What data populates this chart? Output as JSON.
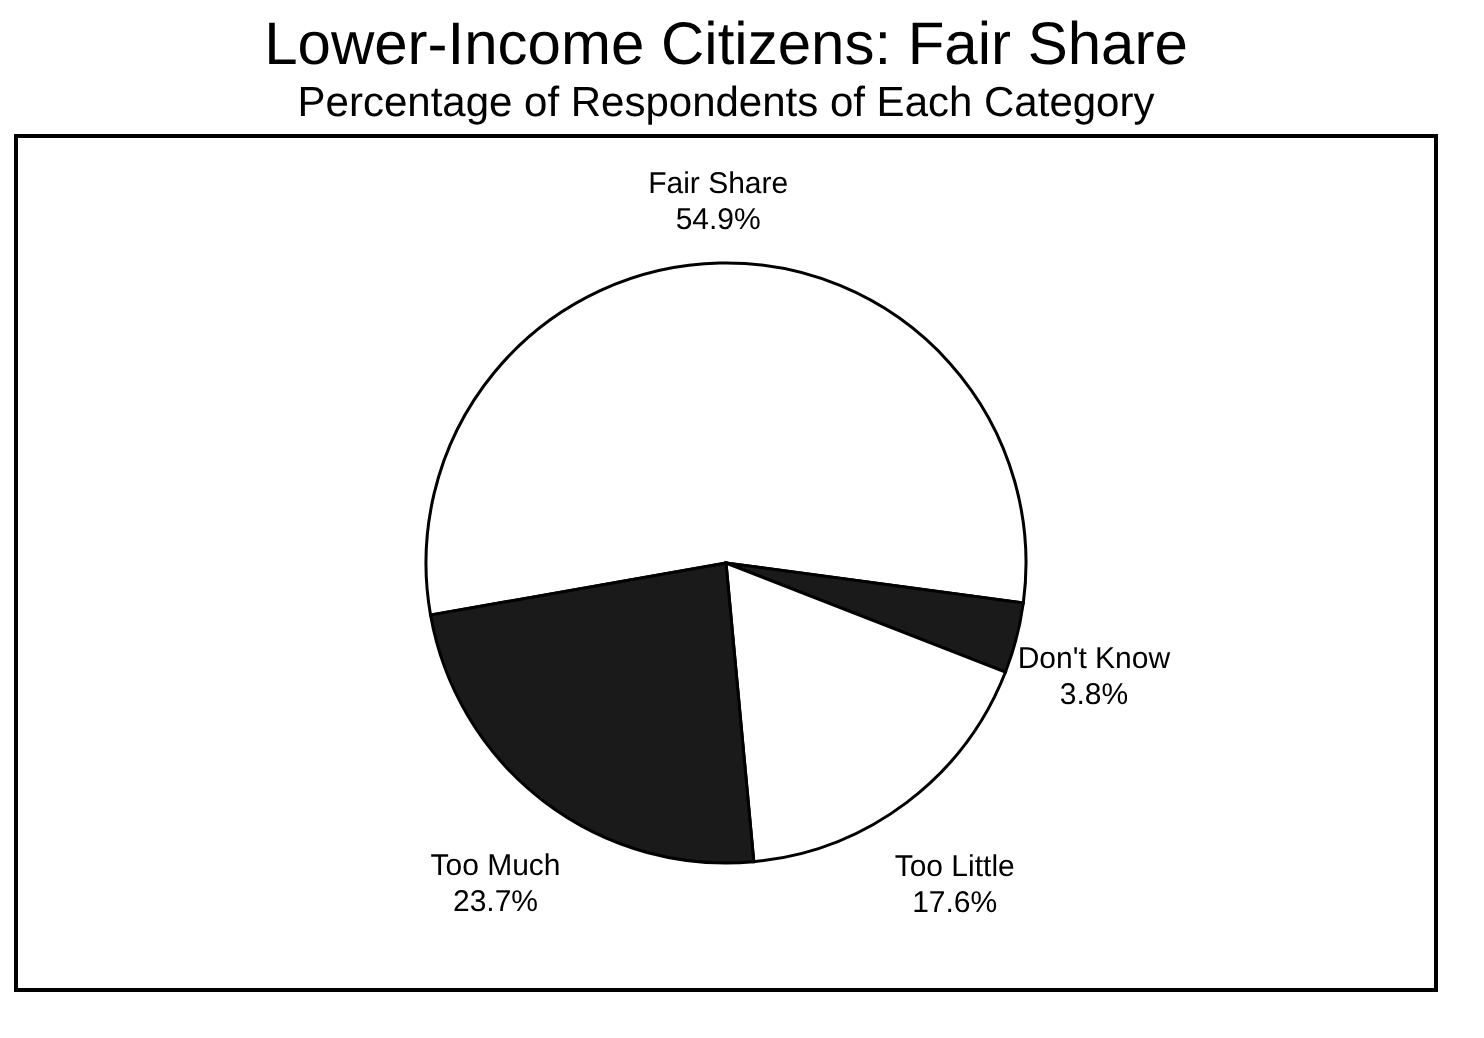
{
  "chart_data": {
    "type": "pie",
    "title": "Lower-Income Citizens:  Fair Share",
    "subtitle": "Percentage of Respondents of Each Category",
    "categories": [
      "Fair Share",
      "Don't Know",
      "Too Little",
      "Too Much"
    ],
    "values": [
      54.9,
      3.8,
      17.6,
      23.7
    ],
    "colors": [
      "#ffffff",
      "#1a1a1a",
      "#ffffff",
      "#1a1a1a"
    ],
    "value_labels": [
      "54.9%",
      "3.8%",
      "17.6%",
      "23.7%"
    ],
    "legend": false
  }
}
